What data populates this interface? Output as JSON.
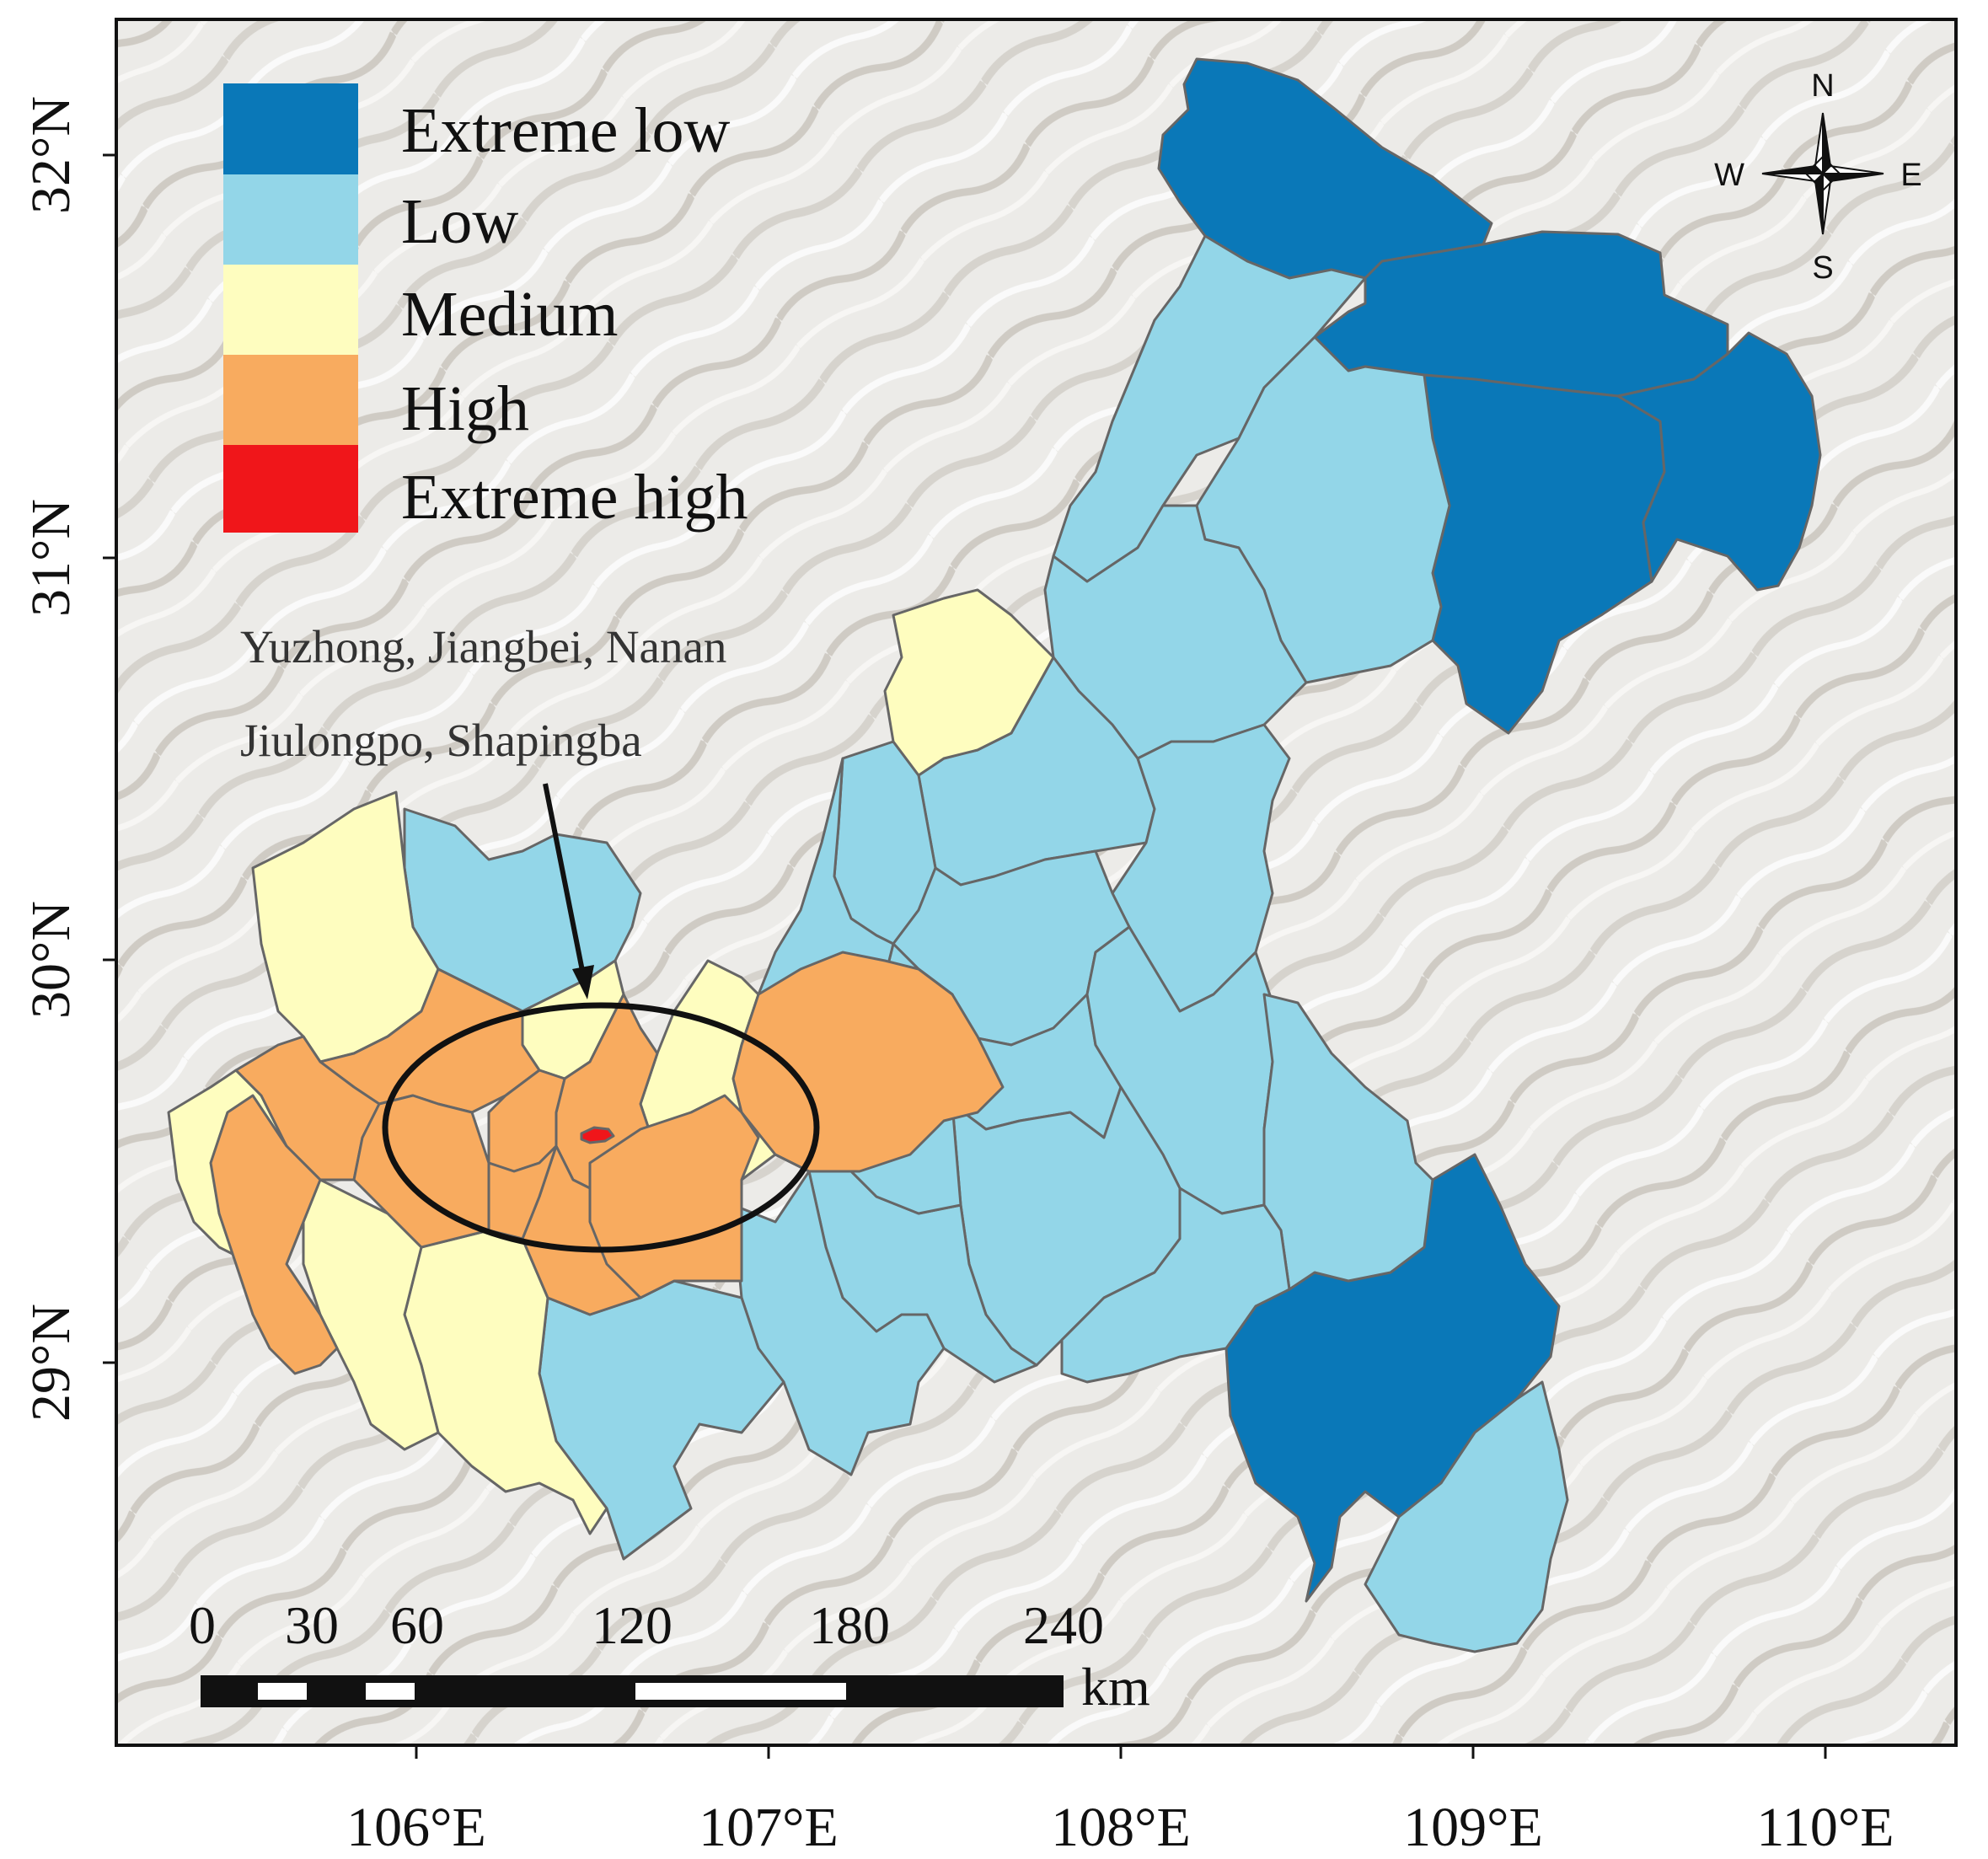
{
  "legend": {
    "items": [
      {
        "label": "Extreme low",
        "color": "#0a78b8"
      },
      {
        "label": "Low",
        "color": "#93d6e8"
      },
      {
        "label": "Medium",
        "color": "#fefdbf"
      },
      {
        "label": "High",
        "color": "#f8ab5f"
      },
      {
        "label": "Extreme high",
        "color": "#f0161a"
      }
    ]
  },
  "axes": {
    "y_ticks": [
      "32°N",
      "31°N",
      "30°N",
      "29°N"
    ],
    "x_ticks": [
      "106°E",
      "107°E",
      "108°E",
      "109°E",
      "110°E"
    ]
  },
  "annotation": {
    "line1": "Yuzhong, Jiangbei, Nanan",
    "line2": "Jiulongpo, Shapingba"
  },
  "scale_bar": {
    "labels": [
      "0",
      "30",
      "60",
      "120",
      "180",
      "240"
    ],
    "unit": "km"
  },
  "compass": {
    "n": "N",
    "s": "S",
    "e": "E",
    "w": "W"
  },
  "colors": {
    "extreme_low": "#0a78b8",
    "low": "#93d6e8",
    "medium": "#fefdbf",
    "high": "#f8ab5f",
    "extreme_high": "#f0161a",
    "terrain": "#ecebe8"
  }
}
